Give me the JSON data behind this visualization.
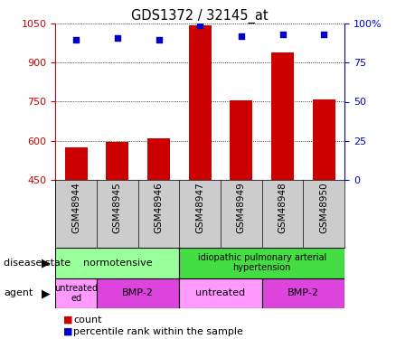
{
  "title": "GDS1372 / 32145_at",
  "samples": [
    "GSM48944",
    "GSM48945",
    "GSM48946",
    "GSM48947",
    "GSM48949",
    "GSM48948",
    "GSM48950"
  ],
  "counts": [
    575,
    595,
    610,
    1045,
    755,
    940,
    760
  ],
  "percentiles": [
    90,
    91,
    90,
    99,
    92,
    93,
    93
  ],
  "ylim_left": [
    450,
    1050
  ],
  "ylim_right": [
    0,
    100
  ],
  "yticks_left": [
    450,
    600,
    750,
    900,
    1050
  ],
  "yticks_right": [
    0,
    25,
    50,
    75,
    100
  ],
  "bar_color": "#cc0000",
  "dot_color": "#0000cc",
  "disease_state_label": "disease state",
  "agent_label": "agent",
  "normotensive_label": "normotensive",
  "idiopathic_label": "idiopathic pulmonary arterial\nhypertension",
  "normotensive_color": "#99ff99",
  "idiopathic_color": "#44dd44",
  "untreated_color": "#ff99ff",
  "bmp2_color": "#dd44dd",
  "sample_bg_color": "#cccccc",
  "bg_color": "#ffffff",
  "tick_color_left": "#cc0000",
  "tick_color_right": "#0000cc",
  "bar_width": 0.55
}
